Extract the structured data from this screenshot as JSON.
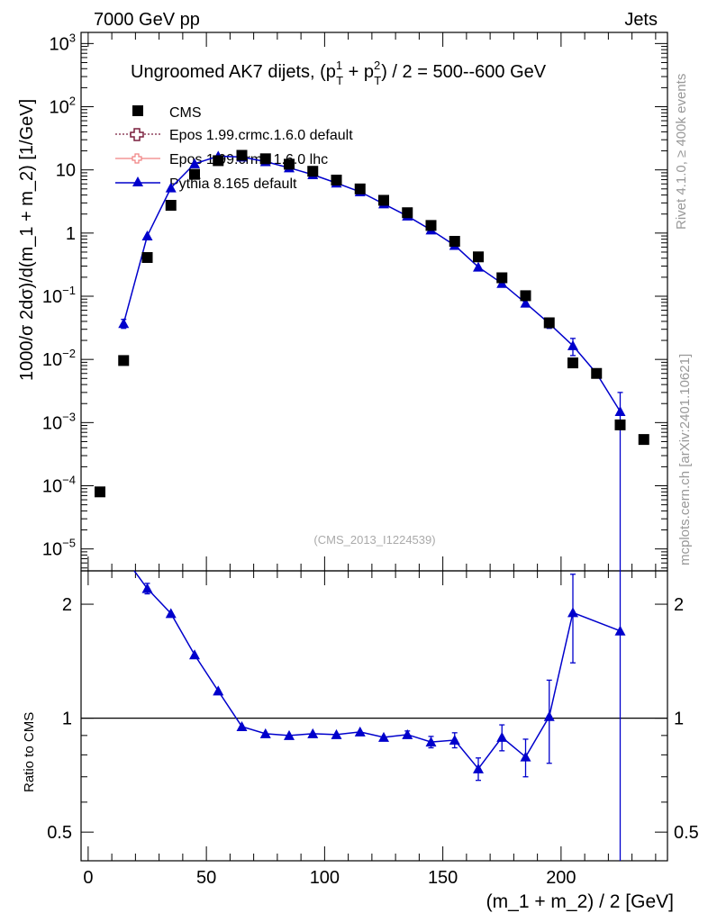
{
  "header": {
    "energy": "7000 GeV pp",
    "process": "Jets",
    "title_main": "Ungroomed AK7 dijets, (p",
    "title_sup1": "1",
    "title_sub1": "T",
    "title_plus": " + p",
    "title_sup2": "2",
    "title_sub2": "T",
    "title_tail": ") / 2 = 500--600 GeV",
    "analysis_id": "(CMS_2013_I1224539)",
    "side_rivet": "Rivet 4.1.0, ≥ 400k events",
    "side_mcplots": "mcplots.cern.ch [arXiv:2401.10621]"
  },
  "legend": [
    {
      "label": "CMS"
    },
    {
      "label": "Epos 1.99.crmc.1.6.0 default"
    },
    {
      "label": "Epos 1.99.crmc.1.6.0 lhc"
    },
    {
      "label": "Pythia 8.165 default"
    }
  ],
  "colors": {
    "cms": "#000000",
    "epos_default": "#7a1f3d",
    "epos_lhc": "#f08080",
    "pythia": "#0000cc"
  },
  "axes": {
    "ylabel_top": "1000/σ  2dσ)/d(m_1 + m_2) [1/GeV]",
    "ylabel_bottom": "Ratio to CMS",
    "xlabel": "(m_1 + m_2) / 2 [GeV]",
    "x_ticks": [
      "0",
      "50",
      "100",
      "150",
      "200"
    ],
    "top_tick_labels": [
      {
        "base": "10",
        "exp": "3"
      },
      {
        "base": "10",
        "exp": "2"
      },
      {
        "base": "10",
        "exp": ""
      },
      {
        "base": "1",
        "exp": ""
      },
      {
        "base": "10",
        "exp": "−1"
      },
      {
        "base": "10",
        "exp": "−2"
      },
      {
        "base": "10",
        "exp": "−3"
      },
      {
        "base": "10",
        "exp": "−4"
      },
      {
        "base": "10",
        "exp": "−5"
      }
    ],
    "ratio_ticks": [
      "2",
      "1",
      "0.5"
    ]
  },
  "chart_data": {
    "type": "scatter",
    "x_range": [
      -3,
      245
    ],
    "y_range_top": [
      4.5e-06,
      1500
    ],
    "y_scale_top": "log",
    "y_range_ratio": [
      0.42,
      2.45
    ],
    "y_scale_ratio": "log",
    "top_tick_values": [
      1000,
      100,
      10,
      1,
      0.1,
      0.01,
      0.001,
      0.0001,
      1e-05
    ],
    "ratio_tick_values": [
      2,
      1,
      0.5
    ],
    "x_tick_values": [
      0,
      50,
      100,
      150,
      200
    ],
    "cms": {
      "x": [
        5,
        15,
        25,
        35,
        45,
        55,
        65,
        75,
        85,
        95,
        105,
        115,
        125,
        135,
        145,
        155,
        165,
        175,
        185,
        195,
        205,
        215,
        225,
        235
      ],
      "y": [
        8e-05,
        0.0096,
        0.41,
        2.75,
        8.5,
        14.0,
        17.0,
        15.0,
        12.3,
        9.5,
        6.9,
        5.0,
        3.3,
        2.1,
        1.32,
        0.74,
        0.42,
        0.196,
        0.102,
        0.038,
        0.0088,
        0.006,
        0.00092,
        0.00054
      ]
    },
    "pythia": {
      "x": [
        15,
        25,
        35,
        45,
        55,
        65,
        75,
        85,
        95,
        105,
        115,
        125,
        135,
        145,
        155,
        165,
        175,
        185,
        195,
        205,
        215,
        225
      ],
      "y": [
        0.037,
        0.9,
        5.2,
        12.5,
        16.5,
        16.0,
        13.5,
        10.8,
        8.4,
        6.2,
        4.5,
        2.9,
        1.86,
        1.12,
        0.64,
        0.29,
        0.16,
        0.078,
        0.037,
        0.0165,
        0.006,
        0.0015
      ],
      "yerr_low": [
        0.006,
        0,
        0,
        0,
        0,
        0,
        0,
        0,
        0,
        0,
        0,
        0,
        0,
        0,
        0,
        0,
        0,
        0,
        0.006,
        0.005,
        0.0009,
        0.0015
      ],
      "yerr_high": [
        0.006,
        0,
        0,
        0,
        0,
        0,
        0,
        0,
        0,
        0,
        0,
        0,
        0,
        0,
        0,
        0,
        0,
        0,
        0.006,
        0.005,
        0.0009,
        0.0015
      ]
    },
    "ratio_pythia": {
      "x": [
        25,
        35,
        45,
        55,
        65,
        75,
        85,
        95,
        105,
        115,
        125,
        135,
        145,
        155,
        165,
        175,
        185,
        195,
        205,
        225
      ],
      "y": [
        2.2,
        1.89,
        1.47,
        1.18,
        0.95,
        0.91,
        0.9,
        0.91,
        0.905,
        0.92,
        0.89,
        0.905,
        0.865,
        0.875,
        0.735,
        0.89,
        0.79,
        1.01,
        1.9,
        1.7
      ],
      "err": [
        0.07,
        0,
        0,
        0,
        0,
        0,
        0,
        0,
        0,
        0,
        0,
        0.02,
        0.03,
        0.04,
        0.05,
        0.07,
        0.09,
        0.25,
        0.5,
        1.5
      ]
    }
  }
}
